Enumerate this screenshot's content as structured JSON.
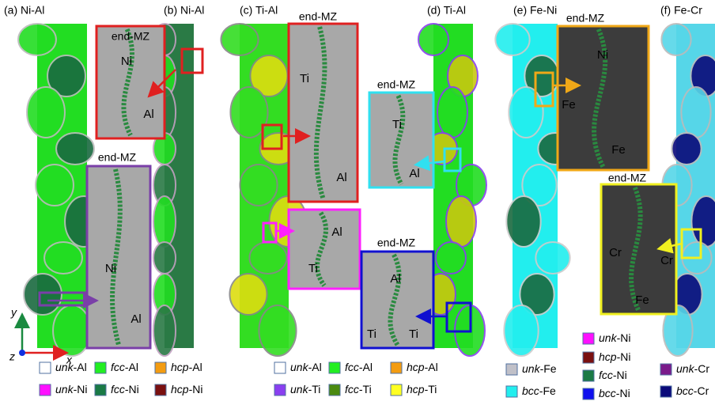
{
  "panels": [
    {
      "label": "(a) Ni-Al"
    },
    {
      "label": "(b) Ni-Al"
    },
    {
      "label": "(c) Ti-Al"
    },
    {
      "label": "(d) Ti-Al"
    },
    {
      "label": "(e) Fe-Ni"
    },
    {
      "label": "(f) Fe-Cr"
    }
  ],
  "insets": [
    {
      "title": "end-MZ",
      "regions": [
        "Ni",
        "Al"
      ]
    },
    {
      "title": "end-MZ",
      "regions": [
        "Ni",
        "Al"
      ]
    },
    {
      "title": "end-MZ",
      "regions": [
        "Ti",
        "Al"
      ]
    },
    {
      "regions": [
        "Al",
        "Ti"
      ]
    },
    {
      "title": "end-MZ",
      "regions": [
        "Ti",
        "Al"
      ]
    },
    {
      "title": "end-MZ",
      "regions": [
        "Al",
        "Ti",
        "Ti"
      ]
    },
    {
      "title": "end-MZ",
      "regions": [
        "Ni",
        "Fe",
        "Fe"
      ]
    },
    {
      "title": "end-MZ",
      "regions": [
        "Cr",
        "Cr",
        "Fe"
      ]
    }
  ],
  "axes": {
    "y": "y",
    "x": "x",
    "z": "z"
  },
  "legends": [
    [
      {
        "phase": "unk",
        "element": "-Al",
        "color": "#ffffff"
      },
      {
        "phase": "fcc",
        "element": "-Al",
        "color": "#22ee22"
      },
      {
        "phase": "hcp",
        "element": "-Al",
        "color": "#f39c12"
      },
      {
        "phase": "unk",
        "element": "-Ni",
        "color": "#ff10ff"
      },
      {
        "phase": "fcc",
        "element": "-Ni",
        "color": "#1a7a45"
      },
      {
        "phase": "hcp",
        "element": "-Ni",
        "color": "#7a1010"
      }
    ],
    [
      {
        "phase": "unk",
        "element": "-Al",
        "color": "#ffffff"
      },
      {
        "phase": "fcc",
        "element": "-Al",
        "color": "#22ee22"
      },
      {
        "phase": "hcp",
        "element": "-Al",
        "color": "#f39c12"
      },
      {
        "phase": "unk",
        "element": "-Ti",
        "color": "#8a3ff0"
      },
      {
        "phase": "fcc",
        "element": "-Ti",
        "color": "#4a8a10"
      },
      {
        "phase": "hcp",
        "element": "-Ti",
        "color": "#ffff22"
      }
    ],
    [
      {
        "phase": "unk",
        "element": "-Fe",
        "color": "#c0c0c8"
      },
      {
        "phase": "bcc",
        "element": "-Fe",
        "color": "#22eeee"
      }
    ],
    [
      {
        "phase": "unk",
        "element": "-Ni",
        "color": "#ff10ff"
      },
      {
        "phase": "hcp",
        "element": "-Ni",
        "color": "#7a1010"
      },
      {
        "phase": "fcc",
        "element": "-Ni",
        "color": "#1a7a45"
      },
      {
        "phase": "bcc",
        "element": "-Ni",
        "color": "#1010ee"
      }
    ],
    [
      {
        "phase": "unk",
        "element": "-Cr",
        "color": "#7a1a8a"
      },
      {
        "phase": "bcc",
        "element": "-Cr",
        "color": "#0a0a7a"
      }
    ]
  ]
}
